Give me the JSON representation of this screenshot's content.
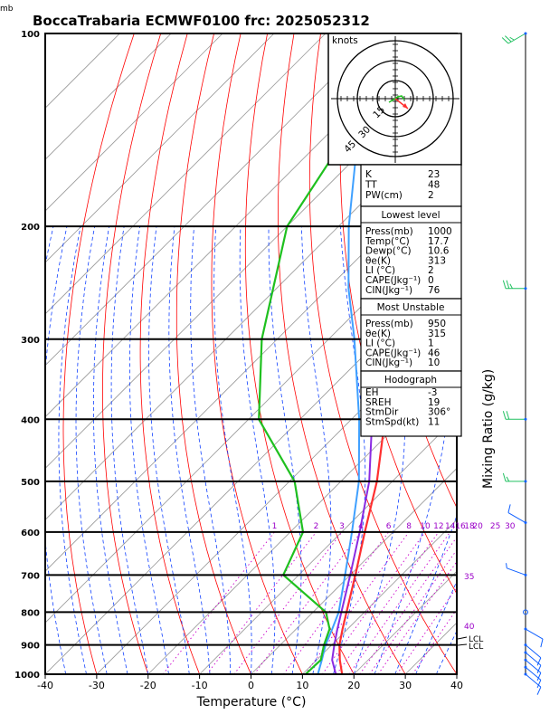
{
  "title": "BoccaTrabaria ECMWF0100 frc: 2025052312",
  "colors": {
    "temp": "#ff3030",
    "dewp": "#1fc01f",
    "parcel": "#8a2be2",
    "virt": "#3fa0ff",
    "dry_adiabat": "#ff0000",
    "moist_adiabat": "#1040ff",
    "mixing": "#cc00cc",
    "isotherm": "#999999",
    "wind": "#00a0b0"
  },
  "chart_data": {
    "type": "skew-t",
    "ylabel_unit": "mb",
    "xlabel": "Temperature (°C)",
    "right_label": "Mixing Ratio (g/kg)",
    "xlim": [
      -40,
      40
    ],
    "ylim_hpa": [
      1000,
      100
    ],
    "x_ticks": [
      -40,
      -30,
      -20,
      -10,
      0,
      10,
      20,
      30,
      40
    ],
    "pressure_ticks": [
      100,
      200,
      300,
      400,
      500,
      600,
      700,
      800,
      900,
      1000
    ],
    "mixing_ratio_labels": [
      "1",
      "2",
      "3",
      "4",
      "6",
      "8",
      "10",
      "12",
      "14",
      "16",
      "18",
      "20",
      "25",
      "30"
    ],
    "mixing_ratio_values": [
      1,
      2,
      3,
      4,
      6,
      8,
      10,
      12,
      14,
      16,
      18,
      20,
      25,
      30
    ],
    "mixing_side_labels": [
      "35",
      "40"
    ],
    "lcl_labels": [
      "LCL",
      "LCL"
    ],
    "temperature": [
      {
        "p": 1000,
        "t": 17.7
      },
      {
        "p": 950,
        "t": 14.5
      },
      {
        "p": 900,
        "t": 11.5
      },
      {
        "p": 850,
        "t": 9.0
      },
      {
        "p": 800,
        "t": 6.5
      },
      {
        "p": 700,
        "t": 1.0
      },
      {
        "p": 600,
        "t": -5.5
      },
      {
        "p": 500,
        "t": -13.0
      },
      {
        "p": 400,
        "t": -23.5
      },
      {
        "p": 300,
        "t": -38.0
      },
      {
        "p": 250,
        "t": -47.0
      },
      {
        "p": 200,
        "t": -48.0
      },
      {
        "p": 150,
        "t": -50.0
      },
      {
        "p": 100,
        "t": -53.0
      }
    ],
    "dewpoint": [
      {
        "p": 1000,
        "t": 10.6
      },
      {
        "p": 950,
        "t": 10.8
      },
      {
        "p": 900,
        "t": 8.5
      },
      {
        "p": 850,
        "t": 6.5
      },
      {
        "p": 800,
        "t": 2.5
      },
      {
        "p": 700,
        "t": -13.0
      },
      {
        "p": 600,
        "t": -17.5
      },
      {
        "p": 500,
        "t": -29.0
      },
      {
        "p": 400,
        "t": -48.0
      },
      {
        "p": 300,
        "t": -63.0
      },
      {
        "p": 200,
        "t": -80.0
      },
      {
        "p": 100,
        "t": -93.0
      }
    ],
    "parcel": [
      {
        "p": 1000,
        "t": 16.5
      },
      {
        "p": 950,
        "t": 13.0
      },
      {
        "p": 900,
        "t": 10.5
      },
      {
        "p": 850,
        "t": 8.0
      },
      {
        "p": 800,
        "t": 5.5
      },
      {
        "p": 700,
        "t": 0.0
      },
      {
        "p": 600,
        "t": -6.5
      },
      {
        "p": 500,
        "t": -14.5
      },
      {
        "p": 400,
        "t": -26.0
      },
      {
        "p": 300,
        "t": -42.0
      },
      {
        "p": 250,
        "t": -53.0
      },
      {
        "p": 200,
        "t": -65.0
      },
      {
        "p": 150,
        "t": -80.0
      },
      {
        "p": 120,
        "t": -90.0
      }
    ],
    "virtual": [
      {
        "p": 1000,
        "t": 13.0
      },
      {
        "p": 950,
        "t": 11.0
      },
      {
        "p": 900,
        "t": 8.8
      },
      {
        "p": 850,
        "t": 7.0
      },
      {
        "p": 800,
        "t": 5.0
      },
      {
        "p": 700,
        "t": -1.0
      },
      {
        "p": 600,
        "t": -8.0
      },
      {
        "p": 500,
        "t": -16.5
      },
      {
        "p": 400,
        "t": -28.5
      },
      {
        "p": 300,
        "t": -45.0
      },
      {
        "p": 250,
        "t": -56.0
      },
      {
        "p": 200,
        "t": -68.0
      },
      {
        "p": 150,
        "t": -82.0
      },
      {
        "p": 120,
        "t": -92.0
      }
    ]
  },
  "hodograph": {
    "unit_label": "knots",
    "ring_labels": [
      "15",
      "30",
      "45"
    ]
  },
  "indices": {
    "rows": [
      {
        "label": "K",
        "value": "23"
      },
      {
        "label": "TT",
        "value": "48"
      },
      {
        "label": "PW(cm)",
        "value": "2"
      }
    ]
  },
  "lowest_level": {
    "header": "Lowest level",
    "rows": [
      {
        "label": "Press(mb)",
        "value": "1000"
      },
      {
        "label": "Temp(°C)",
        "value": "17.7"
      },
      {
        "label": "Dewp(°C)",
        "value": "10.6"
      },
      {
        "label": "θe(K)",
        "value": "313"
      },
      {
        "label": "LI (°C)",
        "value": "2"
      },
      {
        "label": "CAPE(Jkg⁻¹)",
        "value": "0"
      },
      {
        "label": "CIN(Jkg⁻¹)",
        "value": "76"
      }
    ]
  },
  "most_unstable": {
    "header": "Most Unstable",
    "rows": [
      {
        "label": "Press(mb)",
        "value": "950"
      },
      {
        "label": "θe(K)",
        "value": "315"
      },
      {
        "label": "LI (°C)",
        "value": "1"
      },
      {
        "label": "CAPE(Jkg⁻¹)",
        "value": "46"
      },
      {
        "label": "CIN(Jkg⁻¹)",
        "value": "10"
      }
    ]
  },
  "hodograph_stats": {
    "header": "Hodograph",
    "rows": [
      {
        "label": "EH",
        "value": "-3"
      },
      {
        "label": "SREH",
        "value": "19"
      },
      {
        "label": "StmDir",
        "value": "306°"
      },
      {
        "label": "StmSpd(kt)",
        "value": "11"
      }
    ]
  },
  "wind_profile": [
    {
      "p": 100,
      "speed_kt": 25,
      "dir": 240
    },
    {
      "p": 250,
      "speed_kt": 25,
      "dir": 270
    },
    {
      "p": 400,
      "speed_kt": 20,
      "dir": 270
    },
    {
      "p": 500,
      "speed_kt": 15,
      "dir": 270
    },
    {
      "p": 580,
      "speed_kt": 10,
      "dir": 300
    },
    {
      "p": 700,
      "speed_kt": 5,
      "dir": 290
    },
    {
      "p": 800,
      "speed_kt": 0,
      "dir": 0
    },
    {
      "p": 850,
      "speed_kt": 10,
      "dir": 120
    },
    {
      "p": 900,
      "speed_kt": 10,
      "dir": 130
    },
    {
      "p": 925,
      "speed_kt": 10,
      "dir": 130
    },
    {
      "p": 950,
      "speed_kt": 10,
      "dir": 130
    },
    {
      "p": 975,
      "speed_kt": 10,
      "dir": 130
    },
    {
      "p": 1000,
      "speed_kt": 10,
      "dir": 130
    }
  ]
}
